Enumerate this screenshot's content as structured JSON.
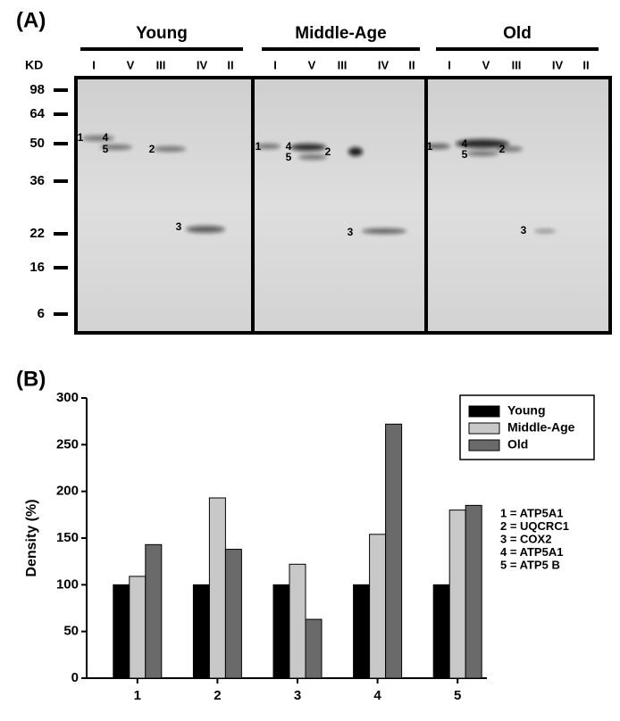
{
  "gel": {
    "label": "(A)",
    "unit": "KD",
    "markers": [
      98,
      64,
      50,
      36,
      22,
      16,
      6
    ],
    "panels": [
      {
        "name": "Young",
        "lanes": [
          "I",
          "V",
          "III",
          "IV",
          "II"
        ],
        "bands": [
          "1",
          "4",
          "5",
          "2",
          "3"
        ]
      },
      {
        "name": "Middle-Age",
        "lanes": [
          "I",
          "V",
          "III",
          "IV",
          "II"
        ],
        "bands": [
          "1",
          "4",
          "5",
          "2",
          "3"
        ]
      },
      {
        "name": "Old",
        "lanes": [
          "I",
          "V",
          "III",
          "IV",
          "II"
        ],
        "bands": [
          "1",
          "4",
          "5",
          "2",
          "3"
        ]
      }
    ]
  },
  "chart_data": {
    "type": "bar",
    "label": "(B)",
    "y_label": "Density (%)",
    "categories": [
      "1",
      "2",
      "3",
      "4",
      "5"
    ],
    "series": [
      {
        "name": "Young",
        "color": "#000000",
        "values": [
          100,
          100,
          100,
          100,
          100
        ]
      },
      {
        "name": "Middle-Age",
        "color": "#c8c8c8",
        "values": [
          109,
          193,
          122,
          154,
          180
        ]
      },
      {
        "name": "Old",
        "color": "#6a6a6a",
        "values": [
          143,
          138,
          63,
          272,
          185
        ]
      }
    ],
    "ylim": [
      0,
      300
    ],
    "yticks": [
      0,
      50,
      100,
      150,
      200,
      250,
      300
    ],
    "legend": "top-right",
    "key": [
      "1 = ATP5A1",
      "2 = UQCRC1",
      "3 = COX2",
      "4 = ATP5A1",
      "5 = ATP5 B"
    ]
  }
}
